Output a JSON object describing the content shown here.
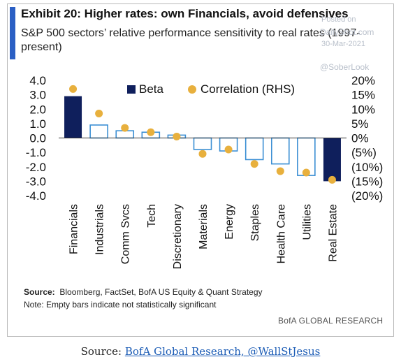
{
  "header": {
    "title": "Exhibit 20: Higher rates: own Financials, avoid defensives",
    "subtitle": "S&P 500 sectors’ relative performance sensitivity to real rates (1997-present)"
  },
  "watermarks": {
    "posted_on": "Posted on",
    "site": "DailyShot.com",
    "date": "30-Mar-2021",
    "handle": "@SoberLook"
  },
  "footer": {
    "source_label": "Source:",
    "source_text": "Bloomberg, FactSet, BofA US Equity & Quant Strategy",
    "note": "Note: Empty bars indicate not statistically significant",
    "brand": "BofA GLOBAL RESEARCH"
  },
  "caption": {
    "prefix": "Source: ",
    "link": "BofA Global Research, @WallStJesus"
  },
  "colors": {
    "beta_fill": "#0f1f5c",
    "empty_bar_stroke": "#3b8fd4",
    "correlation_dot": "#e8b03d",
    "accent": "#2a5fc4"
  },
  "chart_data": {
    "type": "bar",
    "categories": [
      "Financials",
      "Industrials",
      "Comm Svcs",
      "Tech",
      "Discretionary",
      "Materials",
      "Energy",
      "Staples",
      "Health Care",
      "Utilities",
      "Real Estate"
    ],
    "series": [
      {
        "name": "Beta",
        "axis": "left",
        "values": [
          2.9,
          0.9,
          0.5,
          0.4,
          0.2,
          -0.8,
          -0.9,
          -1.5,
          -1.8,
          -2.6,
          -3.0
        ],
        "statistically_significant": [
          true,
          false,
          false,
          false,
          false,
          false,
          false,
          false,
          false,
          false,
          true
        ]
      },
      {
        "name": "Correlation (RHS)",
        "axis": "right",
        "values": [
          17,
          8.5,
          3.5,
          2,
          0.5,
          -5.5,
          -4,
          -9,
          -11.5,
          -12,
          -14.5
        ]
      }
    ],
    "left_axis": {
      "ylim": [
        -4.0,
        4.0
      ],
      "ticks": [
        "4.0",
        "3.0",
        "2.0",
        "1.0",
        "0.0",
        "-1.0",
        "-2.0",
        "-3.0",
        "-4.0"
      ]
    },
    "right_axis": {
      "ylim": [
        -20,
        20
      ],
      "ticks": [
        "20%",
        "15%",
        "10%",
        "5%",
        "0%",
        "(5%)",
        "(10%)",
        "(15%)",
        "(20%)"
      ]
    },
    "legend": {
      "placement": "top-center",
      "entries": [
        "Beta",
        "Correlation (RHS)"
      ]
    },
    "grid": false
  }
}
